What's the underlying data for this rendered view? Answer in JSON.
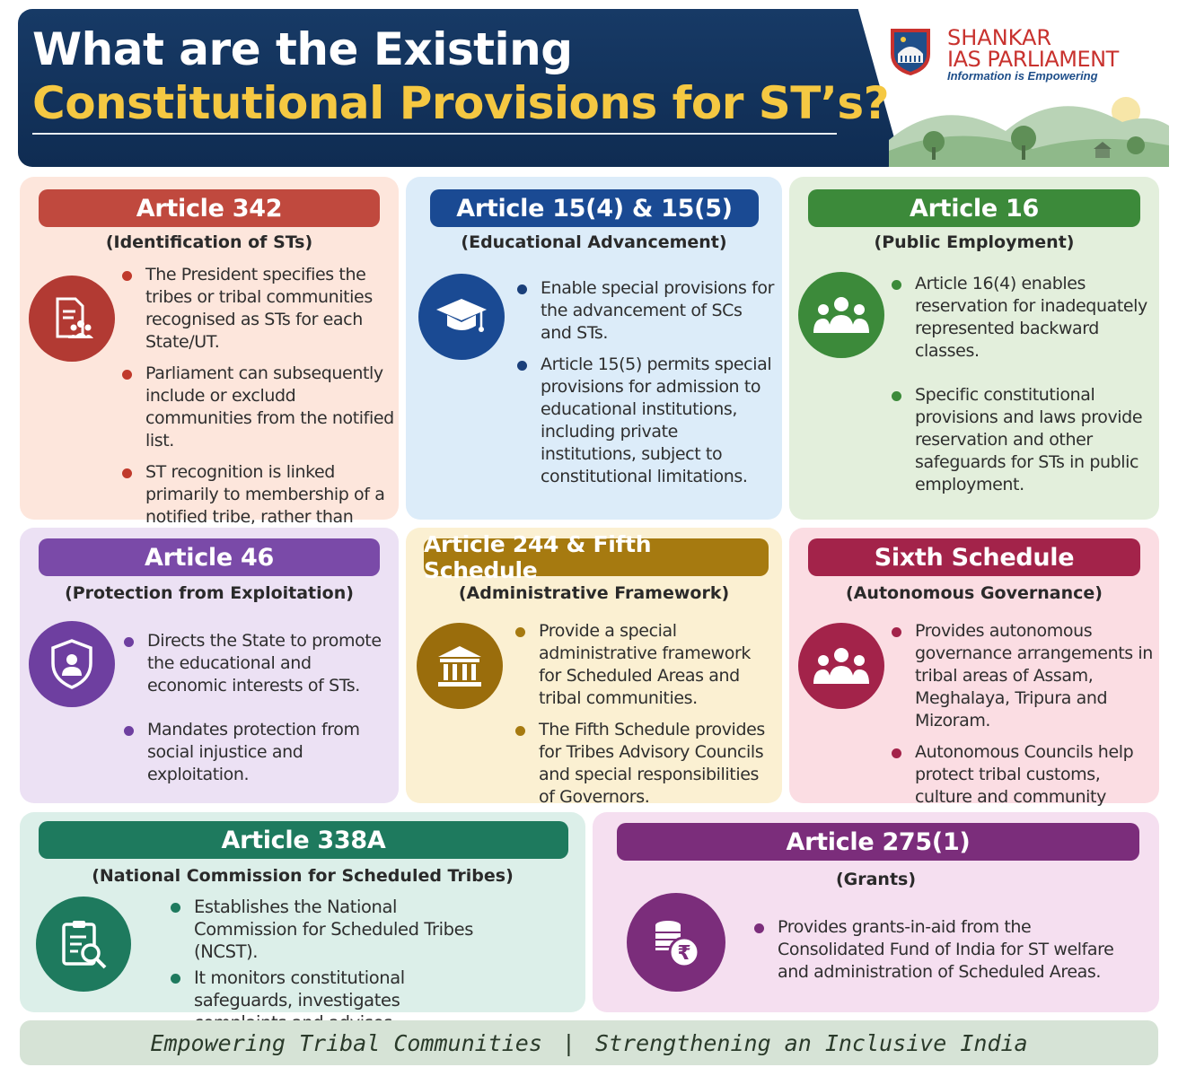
{
  "header": {
    "title_line1": "What are the Existing",
    "title_line2": "Constitutional Provisions for ST’s?"
  },
  "brand": {
    "name_line1": "SHANKAR",
    "name_line2": "IAS PARLIAMENT",
    "tagline": "Information is Empowering"
  },
  "cards": [
    {
      "title": "Article 342",
      "subtitle": "(Identification of STs)",
      "icon": "document-people-icon",
      "color": "#c0392b",
      "bullets": [
        "The President specifies the tribes or tribal communities recognised as STs for each State/UT.",
        "Parliament can subsequently include or excludd communities from the notified list.",
        "ST recognition is linked primarily to membership of a notified tribe, rather than religion."
      ]
    },
    {
      "title": "Article 15(4) & 15(5)",
      "subtitle": "(Educational Advancement)",
      "icon": "graduation-cap-icon",
      "color": "#1a4a93",
      "bullets": [
        "Enable special provisions for the advancement of SCs and STs.",
        "Article 15(5) permits special provisions for admission to educational institutions, including private institutions, subject to constitutional limitations."
      ]
    },
    {
      "title": "Article 16",
      "subtitle": "(Public Employment)",
      "icon": "group-icon",
      "color": "#3c8a3a",
      "bullets": [
        "Article 16(4) enables reservation for inadequately represented backward classes.",
        "Specific constitutional provisions and laws provide reservation and other safeguards for STs in public employment."
      ]
    },
    {
      "title": "Article 46",
      "subtitle": "(Protection from Exploitation)",
      "icon": "shield-person-icon",
      "color": "#6e3fa0",
      "bullets": [
        "Directs the State to promote the educational and economic interests of STs.",
        "Mandates protection from social injustice and exploitation."
      ]
    },
    {
      "title": "Article 244 & Fifth Schedule",
      "subtitle": "(Administrative Framework)",
      "icon": "government-building-icon",
      "color": "#a67a10",
      "bullets": [
        "Provide a special administrative framework for Scheduled Areas and tribal communities.",
        "The Fifth Schedule provides for Tribes Advisory Councils and special responsibilities of Governors."
      ]
    },
    {
      "title": "Sixth Schedule",
      "subtitle": "(Autonomous Governance)",
      "icon": "group-icon",
      "color": "#a3234a",
      "bullets": [
        "Provides autonomous governance arrangements in tribal areas of Assam, Meghalaya, Tripura and Mizoram.",
        "Autonomous Councils help protect tribal customs, culture and community institutions."
      ]
    },
    {
      "title": "Article 338A",
      "subtitle": "(National Commission for Scheduled Tribes)",
      "icon": "clipboard-search-icon",
      "color": "#1e7a5e",
      "bullets": [
        "Establishes the National Commission for Scheduled Tribes (NCST).",
        "It monitors constitutional safeguards, investigates complaints and advises governments on tribal welfare."
      ]
    },
    {
      "title": "Article 275(1)",
      "subtitle": "(Grants)",
      "icon": "rupee-coins-icon",
      "color": "#7b2d7b",
      "bullets": [
        "Provides grants-in-aid from the Consolidated Fund of India for ST welfare and administration of Scheduled Areas."
      ]
    }
  ],
  "footer": {
    "left": "Empowering Tribal Communities",
    "separator": "|",
    "right": "Strengthening an Inclusive India"
  }
}
